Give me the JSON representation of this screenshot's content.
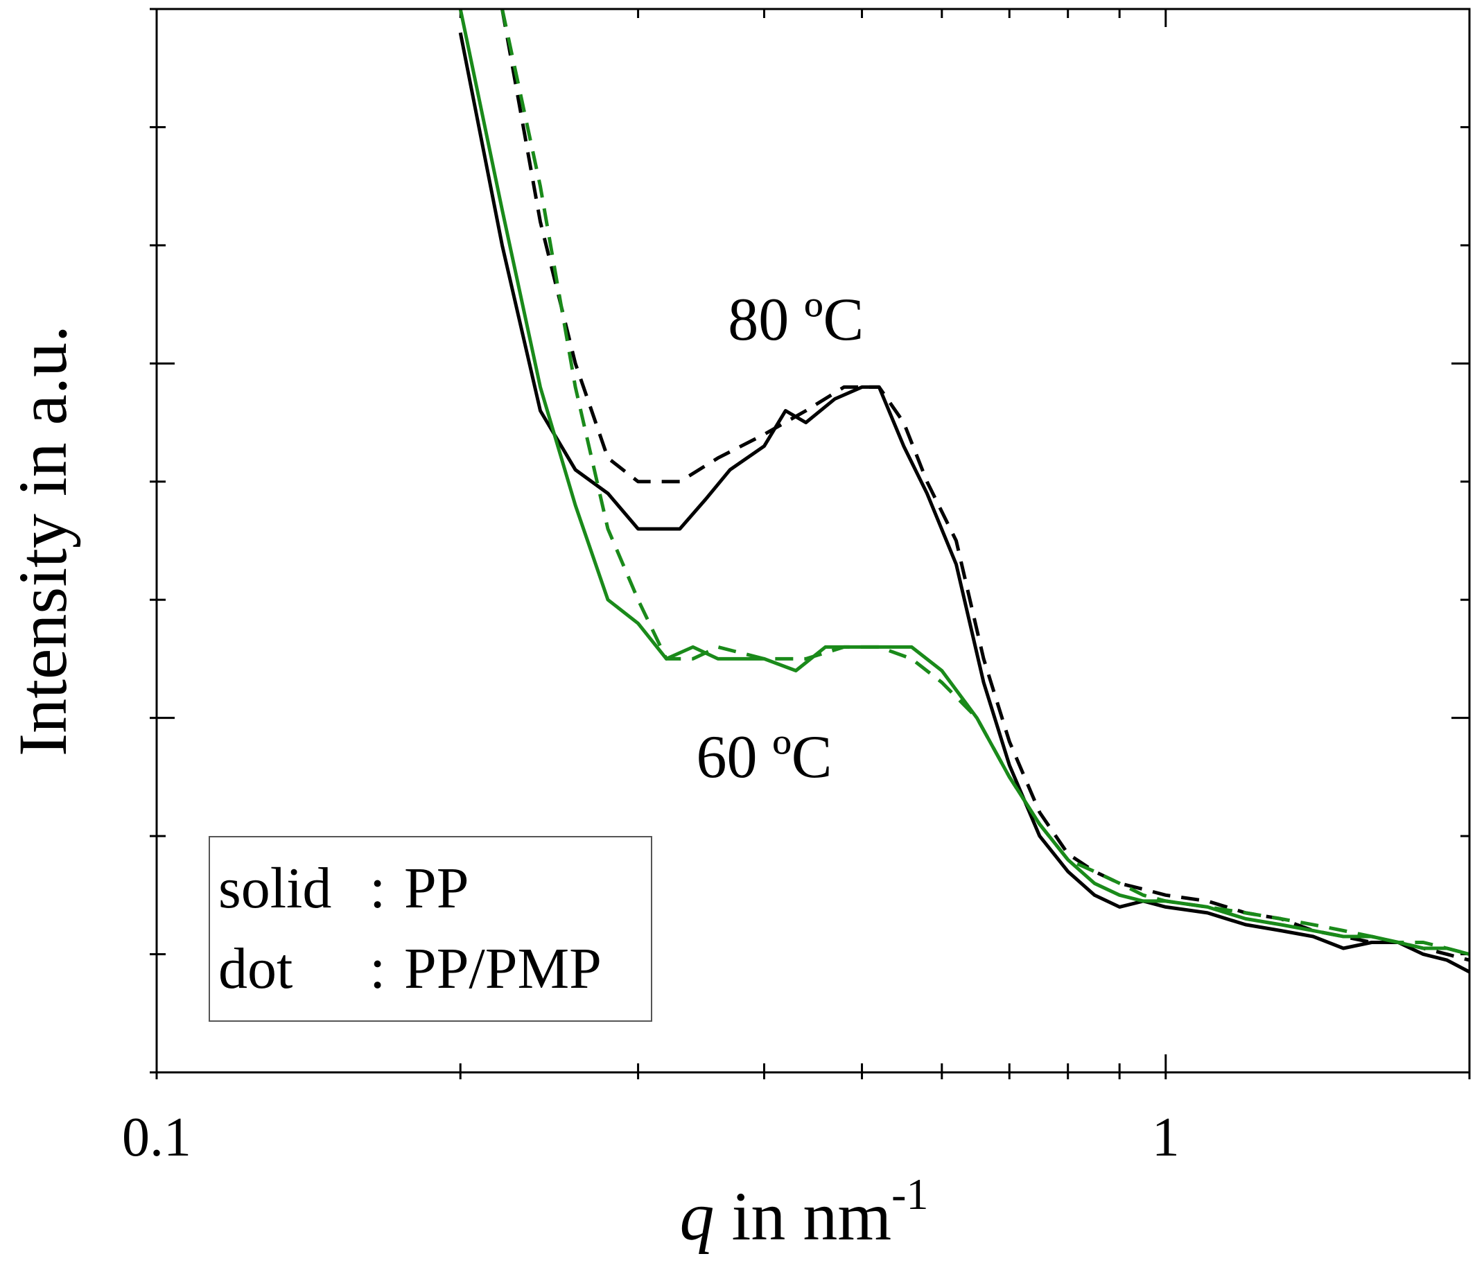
{
  "chart_data": {
    "type": "line",
    "x_scale": "log",
    "xlim": [
      0.1,
      2.0
    ],
    "ylim": [
      0,
      9
    ],
    "xlabel_var": "q",
    "xlabel_rest": " in nm",
    "xlabel_exp": "-1",
    "ylabel": "Intensity in a.u.",
    "x_ticks": [
      {
        "value": 0.1,
        "label": "0.1"
      },
      {
        "value": 1,
        "label": "1"
      }
    ],
    "y_ticks_labeled": false,
    "annotations": [
      {
        "text": "80 ºC",
        "color": "#000000",
        "q": 0.43,
        "y": 6.2
      },
      {
        "text": "60 ºC",
        "color": "#1a8a1a",
        "q": 0.4,
        "y": 2.5
      }
    ],
    "legend": {
      "position": "bottom-left",
      "entries": [
        {
          "key": "solid",
          "sep": ":",
          "value": "PP"
        },
        {
          "key": "dot",
          "sep": ":",
          "value": "PP/PMP"
        }
      ]
    },
    "series": [
      {
        "temperature": "80 ºC",
        "sample": "PP",
        "color": "#000000",
        "style": "solid",
        "x": [
          0.2,
          0.22,
          0.24,
          0.26,
          0.28,
          0.3,
          0.33,
          0.35,
          0.37,
          0.4,
          0.42,
          0.44,
          0.47,
          0.5,
          0.52,
          0.55,
          0.58,
          0.62,
          0.66,
          0.7,
          0.75,
          0.8,
          0.85,
          0.9,
          0.95,
          1.0,
          1.1,
          1.2,
          1.3,
          1.4,
          1.5,
          1.6,
          1.7,
          1.8,
          1.9,
          2.0
        ],
        "y": [
          8.8,
          7.0,
          5.6,
          5.1,
          4.9,
          4.6,
          4.6,
          4.85,
          5.1,
          5.3,
          5.6,
          5.5,
          5.7,
          5.8,
          5.8,
          5.3,
          4.9,
          4.3,
          3.3,
          2.6,
          2.0,
          1.7,
          1.5,
          1.4,
          1.45,
          1.4,
          1.35,
          1.25,
          1.2,
          1.15,
          1.05,
          1.1,
          1.1,
          1.0,
          0.95,
          0.85
        ]
      },
      {
        "temperature": "80 ºC",
        "sample": "PP/PMP",
        "color": "#000000",
        "style": "dashed",
        "x": [
          0.22,
          0.24,
          0.26,
          0.28,
          0.3,
          0.33,
          0.36,
          0.4,
          0.44,
          0.48,
          0.52,
          0.55,
          0.58,
          0.62,
          0.66,
          0.7,
          0.75,
          0.8,
          0.85,
          0.9,
          0.95,
          1.0,
          1.1,
          1.2,
          1.3,
          1.4,
          1.5,
          1.6,
          1.7,
          1.8,
          1.9,
          2.0
        ],
        "y": [
          9.0,
          7.2,
          6.0,
          5.2,
          5.0,
          5.0,
          5.2,
          5.4,
          5.6,
          5.8,
          5.8,
          5.5,
          5.0,
          4.5,
          3.5,
          2.8,
          2.2,
          1.85,
          1.7,
          1.6,
          1.55,
          1.5,
          1.45,
          1.35,
          1.3,
          1.2,
          1.15,
          1.1,
          1.1,
          1.05,
          1.0,
          0.95
        ]
      },
      {
        "temperature": "60 ºC",
        "sample": "PP",
        "color": "#1a8a1a",
        "style": "solid",
        "x": [
          0.2,
          0.22,
          0.24,
          0.26,
          0.28,
          0.3,
          0.32,
          0.34,
          0.36,
          0.38,
          0.4,
          0.43,
          0.46,
          0.5,
          0.53,
          0.56,
          0.6,
          0.65,
          0.7,
          0.75,
          0.8,
          0.85,
          0.9,
          0.95,
          1.0,
          1.1,
          1.2,
          1.3,
          1.4,
          1.5,
          1.6,
          1.7,
          1.8,
          1.9,
          2.0
        ],
        "y": [
          9.0,
          7.3,
          5.8,
          4.8,
          4.0,
          3.8,
          3.5,
          3.6,
          3.5,
          3.5,
          3.5,
          3.4,
          3.6,
          3.6,
          3.6,
          3.6,
          3.4,
          3.0,
          2.5,
          2.1,
          1.8,
          1.6,
          1.5,
          1.45,
          1.45,
          1.4,
          1.3,
          1.25,
          1.2,
          1.15,
          1.15,
          1.1,
          1.05,
          1.05,
          1.0
        ]
      },
      {
        "temperature": "60 ºC",
        "sample": "PP/PMP",
        "color": "#1a8a1a",
        "style": "dashed",
        "x": [
          0.22,
          0.24,
          0.26,
          0.28,
          0.3,
          0.32,
          0.34,
          0.36,
          0.4,
          0.44,
          0.48,
          0.52,
          0.56,
          0.6,
          0.65,
          0.7,
          0.75,
          0.8,
          0.85,
          0.9,
          0.95,
          1.0,
          1.1,
          1.2,
          1.3,
          1.4,
          1.5,
          1.6,
          1.7,
          1.8,
          1.9,
          2.0
        ],
        "y": [
          9.0,
          7.5,
          5.8,
          4.6,
          4.0,
          3.5,
          3.5,
          3.6,
          3.5,
          3.5,
          3.6,
          3.6,
          3.5,
          3.3,
          3.0,
          2.5,
          2.1,
          1.8,
          1.7,
          1.6,
          1.5,
          1.45,
          1.4,
          1.35,
          1.3,
          1.25,
          1.2,
          1.15,
          1.1,
          1.1,
          1.05,
          1.0
        ]
      }
    ]
  }
}
